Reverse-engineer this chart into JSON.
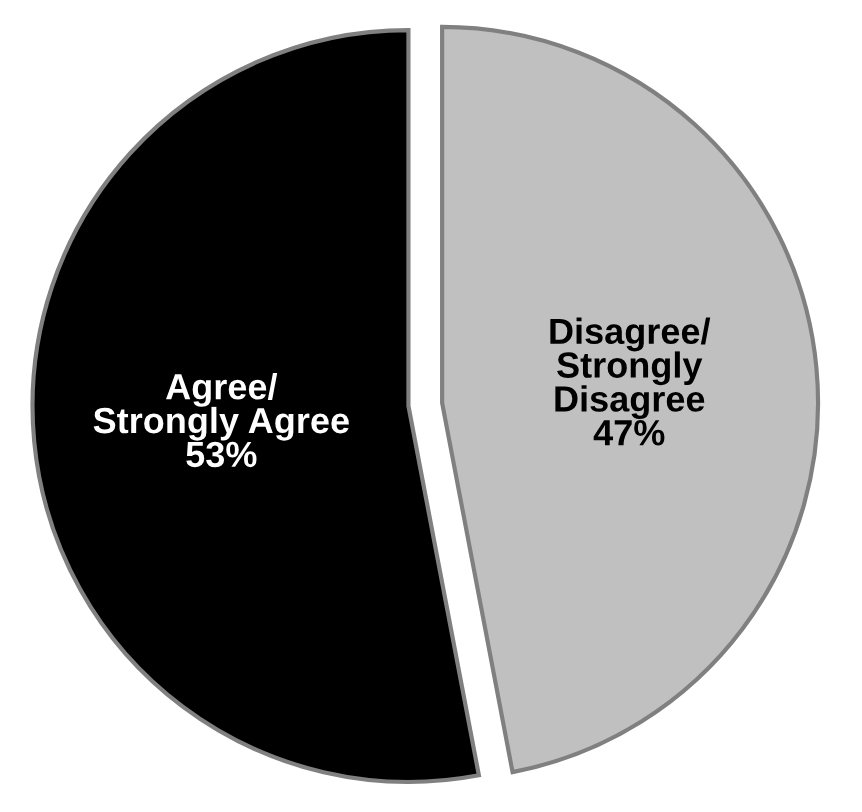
{
  "chart_data": {
    "type": "pie",
    "categories": [
      "Agree/\nStrongly Agree",
      "Disagree/\nStrongly\nDisagree"
    ],
    "values": [
      53,
      47
    ],
    "colors": [
      "#000000",
      "#c0c0c0"
    ],
    "value_labels": [
      "53%",
      "47%"
    ]
  }
}
